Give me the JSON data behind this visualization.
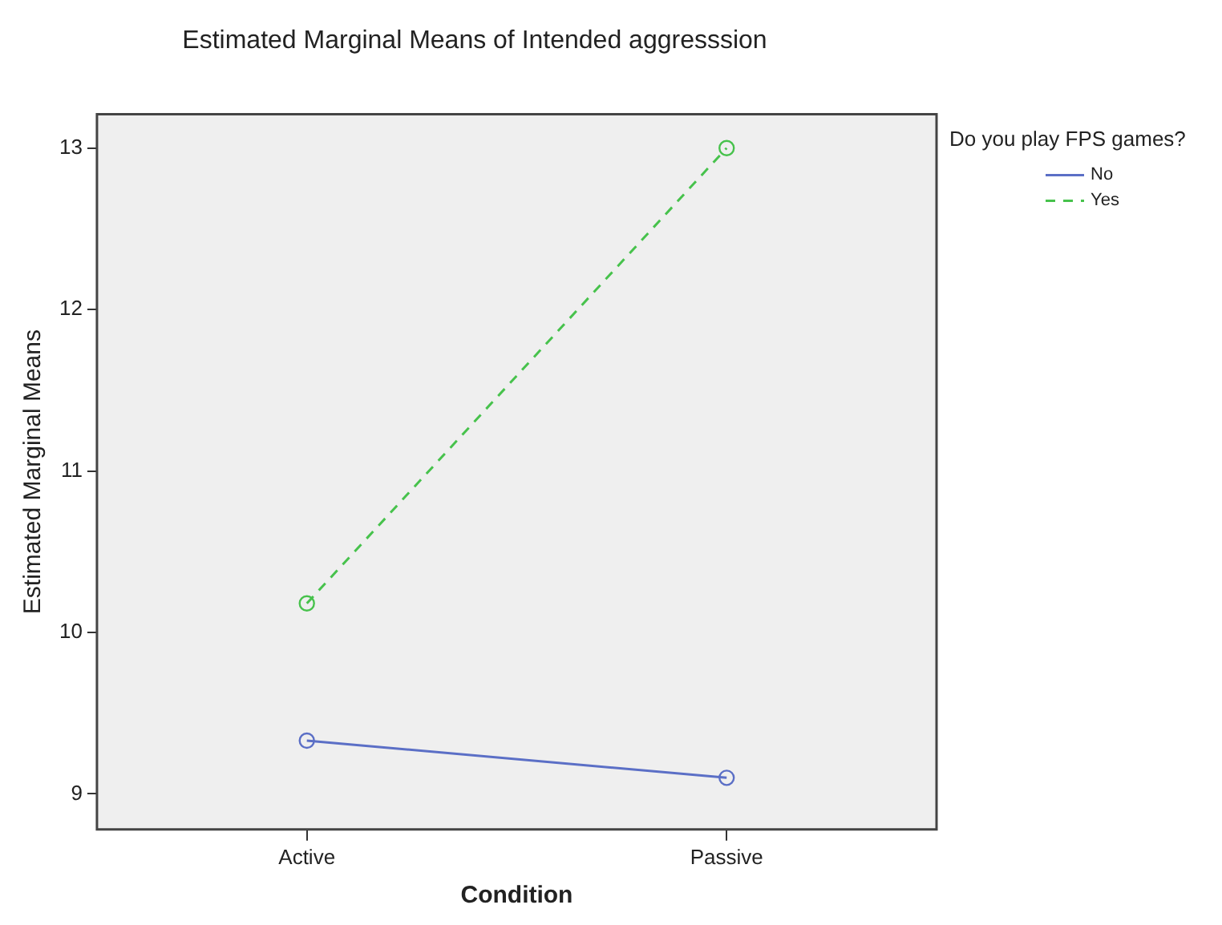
{
  "chart_data": {
    "type": "line",
    "title": "Estimated Marginal Means of Intended aggresssion",
    "xlabel": "Condition",
    "ylabel": "Estimated Marginal Means",
    "legend_title": "Do you play FPS games?",
    "categories": [
      "Active",
      "Passive"
    ],
    "series": [
      {
        "name": "No",
        "color": "#5b6fc6",
        "values": [
          9.33,
          9.1
        ],
        "line_style": "solid"
      },
      {
        "name": "Yes",
        "color": "#47c24c",
        "values": [
          10.18,
          13.0
        ],
        "line_style": "dashed"
      }
    ],
    "ylim": [
      8.78,
      13.21
    ],
    "yticks": [
      9,
      10,
      11,
      12,
      13
    ],
    "marker": "circle",
    "legend": "top right",
    "grid": false
  }
}
